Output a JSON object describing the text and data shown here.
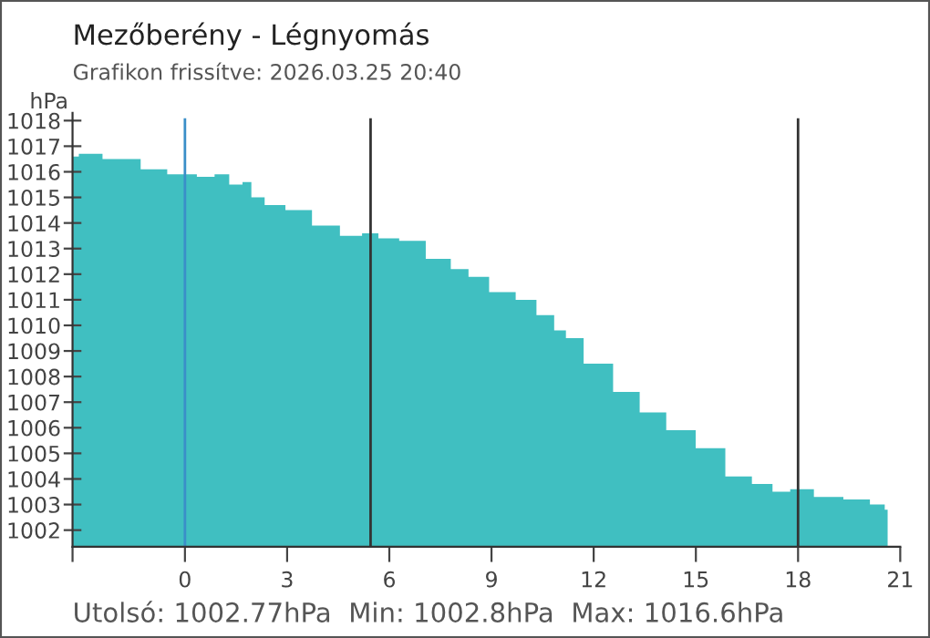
{
  "chart_data": {
    "type": "area",
    "title": "Mezőberény - Légnyomás",
    "subtitle": "Grafikon frissítve: 2026.03.25 20:40",
    "ylabel": "hPa",
    "annotations": [
      "Utolsó: 1002.77hPa  Min: 1002.8hPa  Max: 1016.6hPa"
    ],
    "x": [
      -3.29,
      -2.94,
      -1.9,
      -1.56,
      -1.04,
      0,
      0.7,
      1.04,
      1.56,
      1.82,
      2.08,
      2.6,
      3.3,
      4.16,
      4.94,
      5.46,
      5.9,
      6.68,
      7.46,
      8.15,
      8.5,
      9.36,
      10.06,
      10.58,
      11.1,
      11.27,
      12.14,
      13.0,
      13.7,
      14.56,
      15.43,
      16.3,
      16.99,
      17.51,
      18.03,
      18.9,
      19.76,
      20.46,
      20.63
    ],
    "series": [
      {
        "color": "#40bfc1",
        "values": [
          1016.6,
          1016.7,
          1016.5,
          1016.5,
          1016.1,
          1015.9,
          1015.8,
          1015.9,
          1015.5,
          1015.6,
          1015.0,
          1014.7,
          1014.5,
          1013.9,
          1013.5,
          1013.6,
          1013.4,
          1013.3,
          1012.6,
          1012.2,
          1011.9,
          1011.3,
          1011.0,
          1010.4,
          1009.8,
          1009.5,
          1008.5,
          1007.4,
          1006.6,
          1005.9,
          1005.2,
          1004.1,
          1003.8,
          1003.5,
          1003.6,
          1003.3,
          1003.2,
          1003.0,
          1002.8
        ]
      }
    ],
    "xlim": [
      -3.3,
      21
    ],
    "xticks": [
      {
        "value": -3.3,
        "label": null
      },
      0,
      3,
      6,
      9,
      12,
      15,
      18,
      21
    ],
    "ylim": [
      1001.35,
      1018.3
    ],
    "yticks": [
      1002,
      1003,
      1004,
      1005,
      1006,
      1007,
      1008,
      1009,
      1010,
      1011,
      1012,
      1013,
      1014,
      1015,
      1016,
      1017,
      1018
    ],
    "ref_lines": [
      {
        "axis": "x",
        "value": 0,
        "color": "#3a8fc8"
      },
      {
        "axis": "x",
        "value": 5.45,
        "color": "#333333"
      },
      {
        "axis": "x",
        "value": 18,
        "color": "#333333"
      }
    ],
    "grid": false,
    "legend": false
  }
}
